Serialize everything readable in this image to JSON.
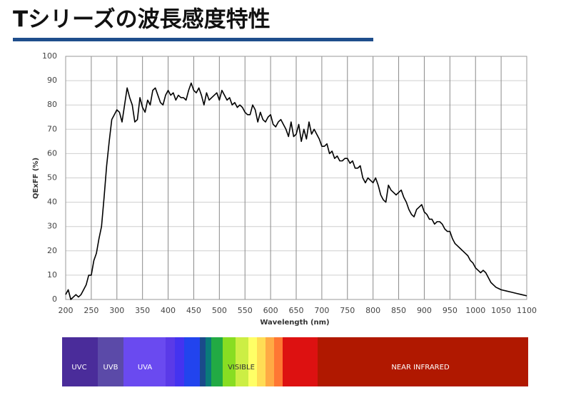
{
  "chart_data": {
    "type": "line",
    "title": "Tシリーズの波長感度特性",
    "xlabel": "Wavelength (nm)",
    "ylabel": "QExFF (%)",
    "color": "#000000",
    "grid": true,
    "xlim": [
      200,
      1100
    ],
    "ylim": [
      0,
      100
    ],
    "xticks": [
      200,
      250,
      300,
      350,
      400,
      450,
      500,
      550,
      600,
      650,
      700,
      750,
      800,
      850,
      900,
      950,
      1000,
      1050,
      1100
    ],
    "yticks": [
      0,
      10,
      20,
      30,
      40,
      50,
      60,
      70,
      80,
      90,
      100
    ],
    "x": [
      200,
      205,
      210,
      215,
      220,
      225,
      230,
      235,
      240,
      245,
      250,
      255,
      260,
      265,
      270,
      275,
      280,
      285,
      290,
      295,
      300,
      305,
      310,
      315,
      320,
      325,
      330,
      335,
      340,
      345,
      350,
      355,
      360,
      365,
      370,
      375,
      380,
      385,
      390,
      395,
      400,
      405,
      410,
      415,
      420,
      425,
      430,
      435,
      440,
      445,
      450,
      455,
      460,
      465,
      470,
      475,
      480,
      485,
      490,
      495,
      500,
      505,
      510,
      515,
      520,
      525,
      530,
      535,
      540,
      545,
      550,
      555,
      560,
      565,
      570,
      575,
      580,
      585,
      590,
      595,
      600,
      605,
      610,
      615,
      620,
      625,
      630,
      635,
      640,
      645,
      650,
      655,
      660,
      665,
      670,
      675,
      680,
      685,
      690,
      695,
      700,
      705,
      710,
      715,
      720,
      725,
      730,
      735,
      740,
      745,
      750,
      755,
      760,
      765,
      770,
      775,
      780,
      785,
      790,
      795,
      800,
      805,
      810,
      815,
      820,
      825,
      830,
      835,
      840,
      845,
      850,
      855,
      860,
      865,
      870,
      875,
      880,
      885,
      890,
      895,
      900,
      905,
      910,
      915,
      920,
      925,
      930,
      935,
      940,
      945,
      950,
      955,
      960,
      965,
      970,
      975,
      980,
      985,
      990,
      995,
      1000,
      1005,
      1010,
      1015,
      1020,
      1025,
      1030,
      1035,
      1040,
      1045,
      1050,
      1060,
      1070,
      1080,
      1090,
      1100
    ],
    "values": [
      2,
      4,
      0,
      1,
      2,
      1,
      2,
      4,
      6,
      10,
      10,
      16,
      19,
      25,
      30,
      42,
      55,
      65,
      74,
      76,
      78,
      77,
      73,
      80,
      87,
      83,
      80,
      73,
      74,
      83,
      79,
      77,
      82,
      80,
      86,
      87,
      84,
      81,
      80,
      84,
      86,
      84,
      85,
      82,
      84,
      83,
      83,
      82,
      86,
      89,
      86,
      85,
      87,
      84,
      80,
      85,
      82,
      83,
      84,
      85,
      82,
      86,
      84,
      82,
      83,
      80,
      81,
      79,
      80,
      79,
      77,
      76,
      76,
      80,
      78,
      73,
      77,
      74,
      73,
      75,
      76,
      72,
      71,
      73,
      74,
      72,
      70,
      67,
      73,
      67,
      68,
      72,
      65,
      70,
      66,
      73,
      68,
      70,
      68,
      66,
      63,
      63,
      64,
      60,
      61,
      58,
      59,
      57,
      57,
      58,
      58,
      56,
      57,
      54,
      54,
      55,
      50,
      48,
      50,
      49,
      48,
      50,
      47,
      43,
      41,
      40,
      47,
      45,
      44,
      43,
      44,
      45,
      42,
      40,
      37,
      35,
      34,
      37,
      38,
      39,
      36,
      35,
      33,
      33,
      31,
      32,
      32,
      31,
      29,
      28,
      28,
      25,
      23,
      22,
      21,
      20,
      19,
      18,
      16,
      15,
      13,
      12,
      11,
      12,
      11,
      9,
      7,
      6,
      5,
      4.5,
      4,
      3.5,
      3,
      2.5,
      2,
      1.5
    ],
    "spectrum": [
      "UVC",
      "UVB",
      "UVA",
      "VISIBLE",
      "NEAR INFRARED"
    ]
  }
}
